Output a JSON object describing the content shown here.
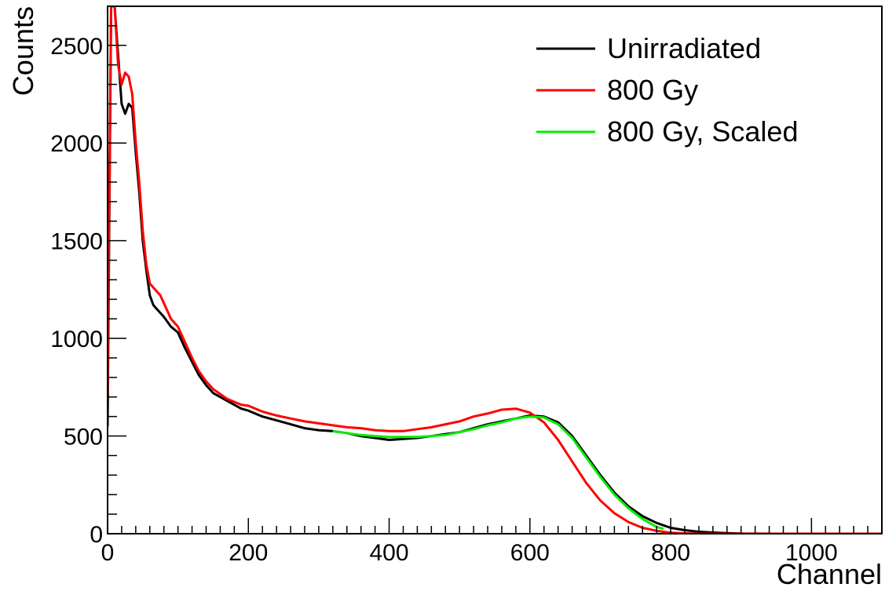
{
  "chart_data": {
    "type": "line",
    "title": "",
    "xlabel": "Channel",
    "ylabel": "Counts",
    "xlim": [
      0,
      1100
    ],
    "ylim": [
      0,
      2700
    ],
    "x_ticks": [
      0,
      200,
      400,
      600,
      800,
      1000
    ],
    "y_ticks": [
      0,
      500,
      1000,
      1500,
      2000,
      2500
    ],
    "x_tick_labels": [
      "0",
      "200",
      "400",
      "600",
      "800",
      "1000"
    ],
    "y_tick_labels": [
      "0",
      "500",
      "1000",
      "1500",
      "2000",
      "2500"
    ],
    "legend_position": "top-right",
    "grid": false,
    "series": [
      {
        "name": "Unirradiated",
        "color": "#000000",
        "x": [
          0,
          5,
          10,
          15,
          20,
          25,
          30,
          35,
          40,
          45,
          50,
          55,
          60,
          65,
          70,
          75,
          80,
          90,
          100,
          110,
          120,
          130,
          140,
          150,
          160,
          170,
          180,
          190,
          200,
          220,
          240,
          260,
          280,
          300,
          320,
          340,
          360,
          380,
          400,
          420,
          440,
          460,
          480,
          500,
          520,
          540,
          560,
          580,
          600,
          620,
          640,
          660,
          680,
          700,
          720,
          740,
          760,
          780,
          800,
          820,
          840,
          860,
          880,
          900,
          950,
          1000,
          1050,
          1100
        ],
        "values": [
          550,
          2700,
          2700,
          2450,
          2200,
          2150,
          2200,
          2180,
          1950,
          1750,
          1500,
          1350,
          1220,
          1170,
          1150,
          1130,
          1110,
          1060,
          1030,
          950,
          880,
          810,
          760,
          720,
          700,
          680,
          660,
          640,
          630,
          600,
          580,
          560,
          540,
          530,
          525,
          515,
          500,
          490,
          480,
          485,
          490,
          500,
          510,
          520,
          540,
          560,
          575,
          590,
          605,
          600,
          570,
          500,
          400,
          300,
          210,
          140,
          90,
          55,
          30,
          18,
          10,
          6,
          3,
          1,
          0,
          0,
          0,
          0
        ]
      },
      {
        "name": "800 Gy",
        "color": "#ff0000",
        "x": [
          0,
          5,
          10,
          15,
          20,
          25,
          30,
          35,
          40,
          45,
          50,
          55,
          60,
          65,
          70,
          75,
          80,
          90,
          100,
          110,
          120,
          130,
          140,
          150,
          160,
          170,
          180,
          190,
          200,
          220,
          240,
          260,
          280,
          300,
          320,
          340,
          360,
          380,
          400,
          420,
          440,
          460,
          480,
          500,
          520,
          540,
          560,
          580,
          600,
          620,
          640,
          660,
          680,
          700,
          720,
          740,
          760,
          780,
          800,
          820,
          840,
          860,
          880,
          900,
          950,
          1000,
          1050,
          1100
        ],
        "values": [
          720,
          2700,
          2700,
          2400,
          2300,
          2360,
          2340,
          2250,
          2000,
          1800,
          1550,
          1380,
          1280,
          1260,
          1240,
          1220,
          1180,
          1100,
          1060,
          980,
          900,
          830,
          780,
          740,
          715,
          690,
          675,
          660,
          655,
          625,
          605,
          590,
          575,
          565,
          555,
          545,
          540,
          530,
          525,
          525,
          535,
          545,
          560,
          575,
          600,
          615,
          635,
          640,
          620,
          570,
          480,
          370,
          260,
          170,
          105,
          60,
          30,
          15,
          5,
          2,
          0,
          0,
          0,
          0,
          0,
          0,
          0,
          0
        ]
      },
      {
        "name": "800 Gy, Scaled",
        "color": "#00ee00",
        "x": [
          320,
          340,
          360,
          380,
          400,
          420,
          440,
          460,
          480,
          500,
          520,
          540,
          560,
          580,
          600,
          620,
          640,
          660,
          680,
          700,
          720,
          740,
          760,
          780,
          790
        ],
        "values": [
          525,
          515,
          505,
          500,
          495,
          495,
          495,
          500,
          505,
          520,
          535,
          555,
          570,
          590,
          600,
          595,
          560,
          490,
          390,
          290,
          200,
          130,
          75,
          35,
          25
        ]
      }
    ]
  }
}
